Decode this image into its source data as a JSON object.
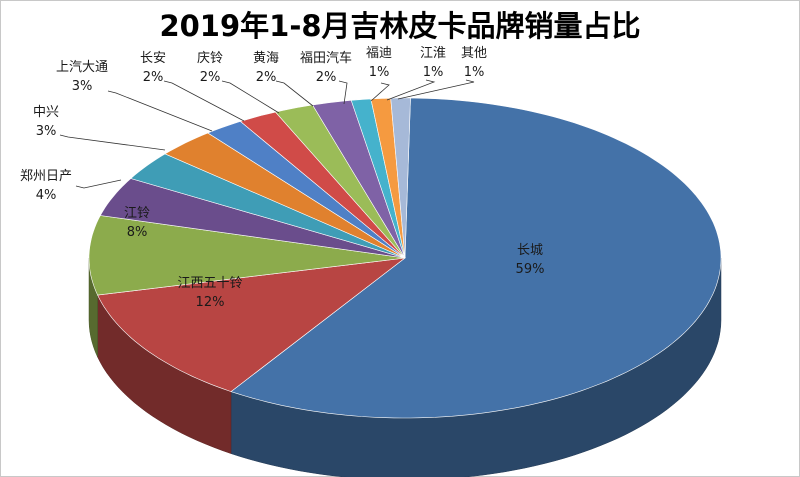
{
  "chart_data": {
    "type": "pie",
    "title": "2019年1-8月吉林皮卡品牌销量占比",
    "slices": [
      {
        "name": "长城",
        "label": "59%",
        "value": 59,
        "color": "#4472a8"
      },
      {
        "name": "江西五十铃",
        "label": "12%",
        "value": 12,
        "color": "#b84543"
      },
      {
        "name": "江铃",
        "label": "8%",
        "value": 8,
        "color": "#8cab4c"
      },
      {
        "name": "郑州日产",
        "label": "4%",
        "value": 4,
        "color": "#6a4d8c"
      },
      {
        "name": "中兴",
        "label": "3%",
        "value": 3,
        "color": "#3f9db6"
      },
      {
        "name": "上汽大通",
        "label": "3%",
        "value": 3,
        "color": "#e0812e"
      },
      {
        "name": "长安",
        "label": "2%",
        "value": 2,
        "color": "#4f80c6"
      },
      {
        "name": "庆铃",
        "label": "2%",
        "value": 2,
        "color": "#d04b48"
      },
      {
        "name": "黄海",
        "label": "2%",
        "value": 2,
        "color": "#9bbc58"
      },
      {
        "name": "福田汽车",
        "label": "2%",
        "value": 2,
        "color": "#7f62a6"
      },
      {
        "name": "福迪",
        "label": "1%",
        "value": 1,
        "color": "#45b2cc"
      },
      {
        "name": "江淮",
        "label": "1%",
        "value": 1,
        "color": "#f59a40"
      },
      {
        "name": "其他",
        "label": "1%",
        "value": 1,
        "color": "#a6b9d8"
      }
    ]
  }
}
